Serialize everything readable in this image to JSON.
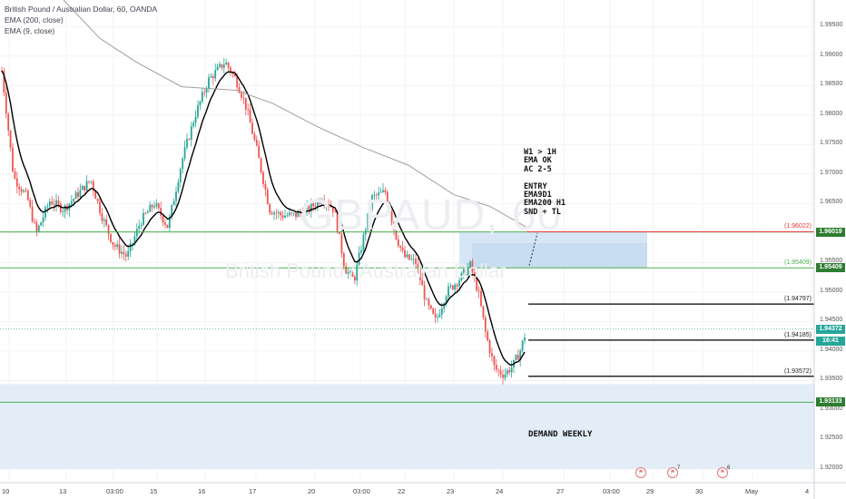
{
  "legend": {
    "title": "British Pound / Australian Dollar, 60, OANDA",
    "ema200": "EMA (200, close)",
    "ema9": "EMA (9, close)"
  },
  "watermark": {
    "symbol": "GBPAUD, 60",
    "name": "British Pound / Australian Dollar"
  },
  "annotations": {
    "note": [
      "W1 > 1H",
      "EMA OK",
      "AC 2-5",
      "",
      "ENTRY",
      "EMA9D1",
      "EMA200 H1",
      "SND + TL"
    ],
    "demand": "DEMAND WEEKLY"
  },
  "levels": [
    {
      "label": "(1.96022)",
      "value": 1.96022,
      "color": "#e53935"
    },
    {
      "label": "(1.95409)",
      "value": 1.95409,
      "color": "#4caf50"
    },
    {
      "label": "(1.94797)",
      "value": 1.94797,
      "color": "#000000"
    },
    {
      "label": "(1.94185)",
      "value": 1.94185,
      "color": "#000000"
    },
    {
      "label": "(1.93572)",
      "value": 1.93572,
      "color": "#000000"
    }
  ],
  "price_badges": [
    {
      "text": "1.96019",
      "value": 1.96019,
      "color": "#2e7d32"
    },
    {
      "text": "1.95409",
      "value": 1.95409,
      "color": "#2e7d32"
    },
    {
      "text": "1.94372",
      "value": 1.94372,
      "color": "#26a69a"
    },
    {
      "text": "16:41",
      "value": 1.94165,
      "color": "#26a69a"
    },
    {
      "text": "1.93133",
      "value": 1.93133,
      "color": "#2e7d32"
    }
  ],
  "events": [
    {
      "symbol": "flag-icon",
      "count": ""
    },
    {
      "symbol": "flag-icon",
      "count": "7"
    },
    {
      "symbol": "flag-icon",
      "count": "6"
    }
  ],
  "chart_data": {
    "type": "candlestick",
    "symbol": "GBPAUD",
    "timeframe": "60",
    "source": "OANDA",
    "ylim": [
      1.918,
      1.9995
    ],
    "y_ticks": [
      "1.99500",
      "1.99000",
      "1.98500",
      "1.98000",
      "1.97500",
      "1.97000",
      "1.96500",
      "1.96000",
      "1.95500",
      "1.95000",
      "1.94500",
      "1.94000",
      "1.93500",
      "1.93000",
      "1.92500",
      "1.92000"
    ],
    "x_ticks": [
      "10",
      "13",
      "03:00",
      "15",
      "16",
      "17",
      "20",
      "03:00",
      "22",
      "23",
      "24",
      "27",
      "03:00",
      "29",
      "30",
      "May",
      "4"
    ],
    "current_price": 1.94372,
    "series": [
      {
        "name": "EMA (200, close)",
        "color": "#9e9e9e"
      },
      {
        "name": "EMA (9, close)",
        "color": "#000000"
      }
    ],
    "zones": [
      {
        "name": "demand weekly",
        "low": 1.92,
        "high": 1.9344,
        "color": "#e3edf8"
      },
      {
        "name": "entry zone",
        "low": 1.95409,
        "high": 1.96022,
        "color": "#d7e6f7"
      }
    ],
    "grid": true
  }
}
